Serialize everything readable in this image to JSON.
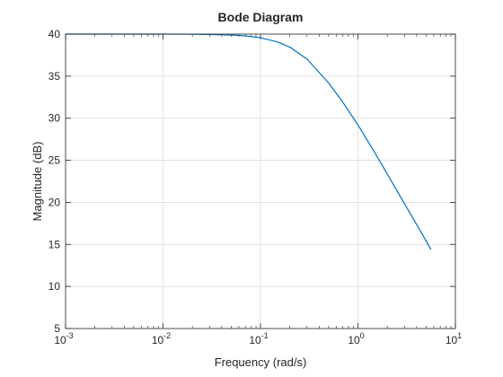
{
  "chart_data": {
    "type": "line",
    "title": "Bode Diagram",
    "xlabel": "Frequency (rad/s)",
    "ylabel": "Magnitude (dB)",
    "xscale": "log",
    "xlim": [
      0.001,
      10
    ],
    "ylim": [
      5,
      40
    ],
    "x_tick_labels": [
      {
        "base": "10",
        "exp": "-3"
      },
      {
        "base": "10",
        "exp": "-2"
      },
      {
        "base": "10",
        "exp": "-1"
      },
      {
        "base": "10",
        "exp": "0"
      },
      {
        "base": "10",
        "exp": "1"
      }
    ],
    "y_ticks": [
      5,
      10,
      15,
      20,
      25,
      30,
      35,
      40
    ],
    "grid": true,
    "series": [
      {
        "color": "#0072BD",
        "x": [
          0.001,
          0.002,
          0.005,
          0.01,
          0.02,
          0.03,
          0.05,
          0.07,
          0.1,
          0.15,
          0.2,
          0.3,
          0.5,
          0.7,
          1,
          1.5,
          2,
          3,
          4,
          5,
          5.6
        ],
        "y": [
          40.0,
          40.0,
          40.0,
          40.0,
          39.98,
          39.96,
          39.89,
          39.79,
          39.57,
          39.07,
          38.45,
          37.04,
          34.2,
          31.9,
          29.21,
          25.84,
          23.37,
          19.85,
          17.37,
          15.42,
          14.4
        ]
      }
    ]
  }
}
